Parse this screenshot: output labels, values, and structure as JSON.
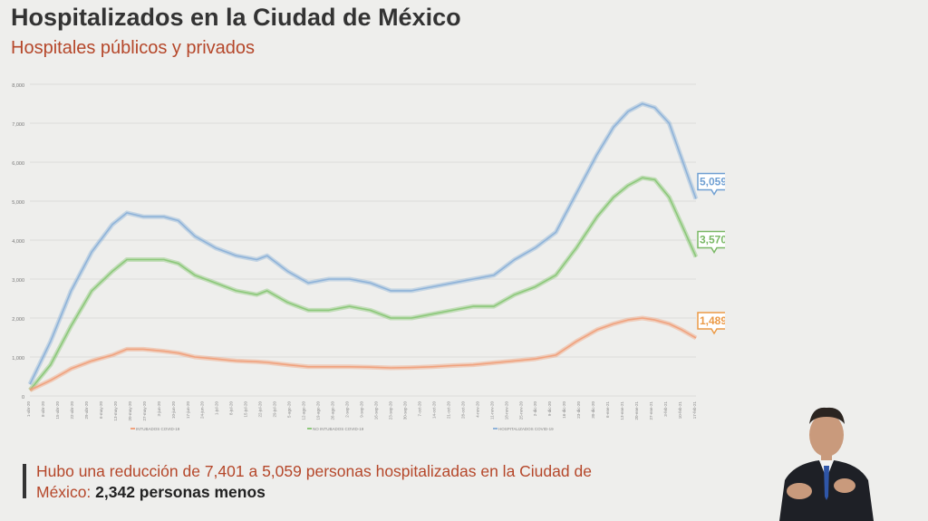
{
  "header": {
    "title": "Hospitalizados en la Ciudad de México",
    "subtitle": "Hospitales públicos y privados"
  },
  "footer": {
    "text_part1": "Hubo una reducción de 7,401 a 5,059 personas hospitalizadas en la Ciudad de México: ",
    "text_part2": "2,342 personas menos"
  },
  "colors": {
    "title": "#333333",
    "accent": "#b5472a",
    "hospitalizados": "#8fb3d9",
    "no_intubados": "#8cc87a",
    "intubados": "#f0a27e",
    "callout_blue": "#6f9fd2",
    "callout_green": "#7ab865",
    "callout_orange": "#eb9a46"
  },
  "chart_data": {
    "type": "line",
    "title": "",
    "xlabel": "",
    "ylabel": "",
    "ylim": [
      0,
      8000
    ],
    "yticks": [
      "0",
      "1,000",
      "2,000",
      "3,000",
      "4,000",
      "5,000",
      "6,000",
      "7,000",
      "8,000"
    ],
    "x_start": "1-Abr-20",
    "x_end": "17-Feb-21",
    "x_tick_labels": [
      "1-abr-20",
      "8-abr-20",
      "15-abr-20",
      "22-abr-20",
      "29-abr-20",
      "6-may-20",
      "13-may-20",
      "20-may-20",
      "27-may-20",
      "3-jun-20",
      "10-jun-20",
      "17-jun-20",
      "24-jun-20",
      "1-jul-20",
      "8-jul-20",
      "15-jul-20",
      "22-jul-20",
      "29-jul-20",
      "5-ago-20",
      "12-ago-20",
      "19-ago-20",
      "26-ago-20",
      "2-sep-20",
      "9-sep-20",
      "16-sep-20",
      "23-sep-20",
      "30-sep-20",
      "7-oct-20",
      "14-oct-20",
      "21-oct-20",
      "28-oct-20",
      "4-nov-20",
      "11-nov-20",
      "18-nov-20",
      "25-nov-20",
      "2-dic-20",
      "9-dic-20",
      "16-dic-20",
      "23-dic-20",
      "30-dic-20",
      "6-ene-21",
      "13-ene-21",
      "20-ene-21",
      "27-ene-21",
      "3-feb-21",
      "10-feb-21",
      "17-feb-21"
    ],
    "grid": true,
    "legend": "bottom",
    "legend_labels": [
      "INTUBADOS COVID-19",
      "NO INTUBADOS COVID-19",
      "HOSPITALIZADOS COVID-19"
    ],
    "series": [
      {
        "name": "HOSPITALIZADOS COVID-19",
        "color": "#8fb3d9",
        "x": [
          0,
          10,
          20,
          30,
          40,
          47,
          55,
          65,
          72,
          80,
          90,
          100,
          110,
          115,
          125,
          135,
          145,
          155,
          165,
          175,
          185,
          195,
          205,
          215,
          225,
          235,
          245,
          255,
          265,
          275,
          283,
          290,
          297,
          303,
          310,
          316,
          323
        ],
        "values": [
          300,
          1400,
          2700,
          3700,
          4400,
          4700,
          4600,
          4600,
          4500,
          4100,
          3800,
          3600,
          3500,
          3600,
          3200,
          2900,
          3000,
          3000,
          2900,
          2700,
          2700,
          2800,
          2900,
          3000,
          3100,
          3500,
          3800,
          4200,
          5200,
          6200,
          6900,
          7300,
          7500,
          7401,
          7000,
          6100,
          5059
        ],
        "callout": "5,059"
      },
      {
        "name": "NO INTUBADOS COVID-19",
        "color": "#8cc87a",
        "x": [
          0,
          10,
          20,
          30,
          40,
          47,
          55,
          65,
          72,
          80,
          90,
          100,
          110,
          115,
          125,
          135,
          145,
          155,
          165,
          175,
          185,
          195,
          205,
          215,
          225,
          235,
          245,
          255,
          265,
          275,
          283,
          290,
          297,
          303,
          310,
          316,
          323
        ],
        "values": [
          150,
          800,
          1800,
          2700,
          3200,
          3500,
          3500,
          3500,
          3400,
          3100,
          2900,
          2700,
          2600,
          2700,
          2400,
          2200,
          2200,
          2300,
          2200,
          2000,
          2000,
          2100,
          2200,
          2300,
          2300,
          2600,
          2800,
          3100,
          3800,
          4600,
          5100,
          5400,
          5600,
          5550,
          5100,
          4400,
          3570
        ],
        "callout": "3,570"
      },
      {
        "name": "INTUBADOS COVID-19",
        "color": "#f0a27e",
        "x": [
          0,
          10,
          20,
          30,
          40,
          47,
          55,
          65,
          72,
          80,
          90,
          100,
          110,
          115,
          125,
          135,
          145,
          155,
          165,
          175,
          185,
          195,
          205,
          215,
          225,
          235,
          245,
          255,
          265,
          275,
          283,
          290,
          297,
          303,
          310,
          316,
          323
        ],
        "values": [
          150,
          400,
          700,
          900,
          1050,
          1200,
          1200,
          1150,
          1100,
          1000,
          950,
          900,
          880,
          860,
          800,
          750,
          750,
          750,
          740,
          720,
          730,
          750,
          780,
          800,
          850,
          900,
          950,
          1050,
          1400,
          1700,
          1850,
          1950,
          2000,
          1950,
          1850,
          1700,
          1489
        ],
        "callout": "1,489"
      }
    ]
  }
}
